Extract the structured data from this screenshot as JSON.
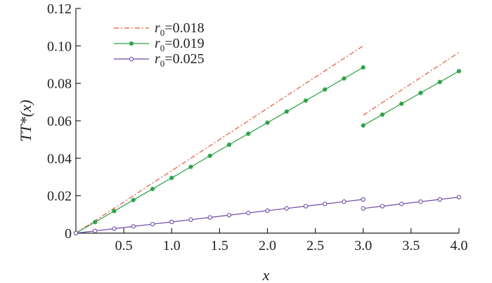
{
  "chart_data": {
    "type": "line",
    "xlabel": "x",
    "ylabel": "TT*(x)",
    "xlim": [
      0,
      4.0
    ],
    "ylim": [
      0,
      0.12
    ],
    "x_ticks": [
      0.5,
      1.0,
      1.5,
      2.0,
      2.5,
      3.0,
      3.5,
      4.0
    ],
    "x_tick_labels": [
      "0.5",
      "1.0",
      "1.5",
      "2.0",
      "2.5",
      "3.0",
      "3.5",
      "4.0"
    ],
    "y_ticks": [
      0,
      0.02,
      0.04,
      0.06,
      0.08,
      0.1,
      0.12
    ],
    "y_tick_labels": [
      "0",
      "0.02",
      "0.04",
      "0.06",
      "0.08",
      "0.10",
      "0.12"
    ],
    "legend_position": "top-left",
    "grid": false,
    "series": [
      {
        "name": "r0=0.018",
        "legend_r": "r",
        "legend_sub": "0",
        "legend_value": "=0.018",
        "color": "#e8553c",
        "line_style": "dash-dot",
        "marker": "none",
        "segments": [
          {
            "x": [
              0,
              3.0
            ],
            "y": [
              0,
              0.1
            ]
          },
          {
            "x": [
              3.0,
              4.0
            ],
            "y": [
              0.063,
              0.0965
            ]
          }
        ]
      },
      {
        "name": "r0=0.019",
        "legend_r": "r",
        "legend_sub": "0",
        "legend_value": "=0.019",
        "color": "#2aa144",
        "line_style": "solid",
        "marker": "star",
        "segments": [
          {
            "x": [
              0,
              0.2,
              0.4,
              0.6,
              0.8,
              1.0,
              1.2,
              1.4,
              1.6,
              1.8,
              2.0,
              2.2,
              2.4,
              2.6,
              2.8,
              3.0
            ],
            "y": [
              0,
              0.0059,
              0.0118,
              0.0177,
              0.0236,
              0.0295,
              0.0354,
              0.0413,
              0.0472,
              0.0531,
              0.059,
              0.0649,
              0.0708,
              0.0767,
              0.0826,
              0.0885
            ]
          },
          {
            "x": [
              3.0,
              3.2,
              3.4,
              3.6,
              3.8,
              4.0
            ],
            "y": [
              0.0575,
              0.0633,
              0.0691,
              0.0749,
              0.0807,
              0.0865
            ]
          }
        ]
      },
      {
        "name": "r0=0.025",
        "legend_r": "r",
        "legend_sub": "0",
        "legend_value": "=0.025",
        "color": "#6a4aa8",
        "line_style": "solid",
        "marker": "circle",
        "segments": [
          {
            "x": [
              0,
              0.2,
              0.4,
              0.6,
              0.8,
              1.0,
              1.2,
              1.4,
              1.6,
              1.8,
              2.0,
              2.2,
              2.4,
              2.6,
              2.8,
              3.0
            ],
            "y": [
              0,
              0.0012,
              0.0024,
              0.0036,
              0.0048,
              0.006,
              0.0072,
              0.0084,
              0.0096,
              0.0108,
              0.012,
              0.0132,
              0.0144,
              0.0156,
              0.0168,
              0.018
            ]
          },
          {
            "x": [
              3.0,
              3.2,
              3.4,
              3.6,
              3.8,
              4.0
            ],
            "y": [
              0.0132,
              0.0144,
              0.0156,
              0.0168,
              0.018,
              0.0192
            ]
          }
        ]
      }
    ]
  }
}
